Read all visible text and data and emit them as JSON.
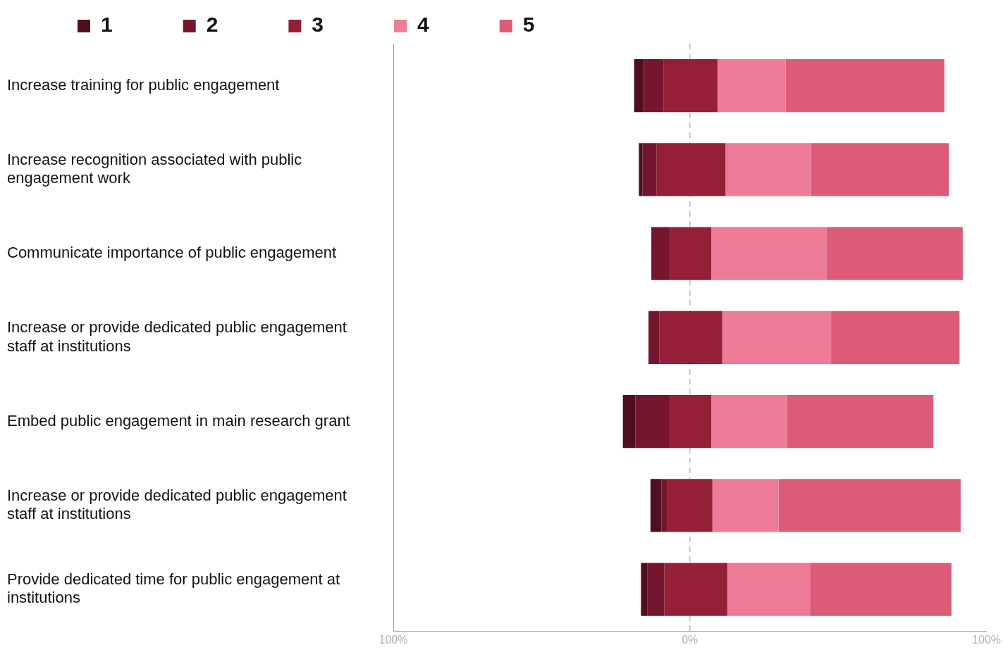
{
  "chart_data": {
    "type": "bar",
    "orientation": "horizontal",
    "categories": [
      "Increase training for public engagement",
      "Increase recognition associated with public engagement work",
      "Communicate importance of public engagement",
      "Increase or provide dedicated public engagement staff at institutions",
      "Embed public engagement in main research grant",
      "Increase or provide dedicated public engagement staff at institutions",
      "Provide dedicated time for public engagement at institutions"
    ],
    "series": [
      {
        "name": "1",
        "color": "#4f0f1f",
        "values": [
          3.3,
          1.2,
          0.2,
          0.2,
          4.2,
          3.7,
          2.1
        ],
        "base": [
          -18.8,
          -17.2,
          -13.0,
          -14.0,
          -22.6,
          -13.3,
          -16.5
        ]
      },
      {
        "name": "2",
        "color": "#74162e",
        "values": [
          6.7,
          4.7,
          6.0,
          3.5,
          11.6,
          2.1,
          5.8
        ],
        "base": [
          -15.5,
          -16.0,
          -12.8,
          -13.8,
          -18.4,
          -9.6,
          -14.4
        ]
      },
      {
        "name": "3",
        "color": "#951f36",
        "values": [
          18.1,
          23.3,
          14.0,
          21.2,
          14.0,
          15.1,
          21.2
        ],
        "base": [
          -8.8,
          -11.3,
          -6.8,
          -10.3,
          -6.8,
          -7.5,
          -8.6
        ]
      },
      {
        "name": "4",
        "color": "#ee7b98",
        "values": [
          23.0,
          28.8,
          38.8,
          36.7,
          25.6,
          22.3,
          27.9
        ],
        "base": [
          9.3,
          12.0,
          7.2,
          10.9,
          7.2,
          7.6,
          12.6
        ]
      },
      {
        "name": "5",
        "color": "#dc5c78",
        "values": [
          53.5,
          46.5,
          46.0,
          43.3,
          49.3,
          61.4,
          47.7
        ],
        "base": [
          32.3,
          40.8,
          46.0,
          47.6,
          32.8,
          29.9,
          40.5
        ]
      }
    ],
    "xlim": [
      -100,
      100
    ],
    "xticks": [
      {
        "value": -100,
        "label": "100%"
      },
      {
        "value": 0,
        "label": "0%"
      },
      {
        "value": 100,
        "label": "100%"
      }
    ],
    "ref_lines": [
      {
        "axis": "x",
        "value": 0,
        "color": "#bbbbbb",
        "line_style": "dashed"
      }
    ],
    "legend": "top left"
  }
}
